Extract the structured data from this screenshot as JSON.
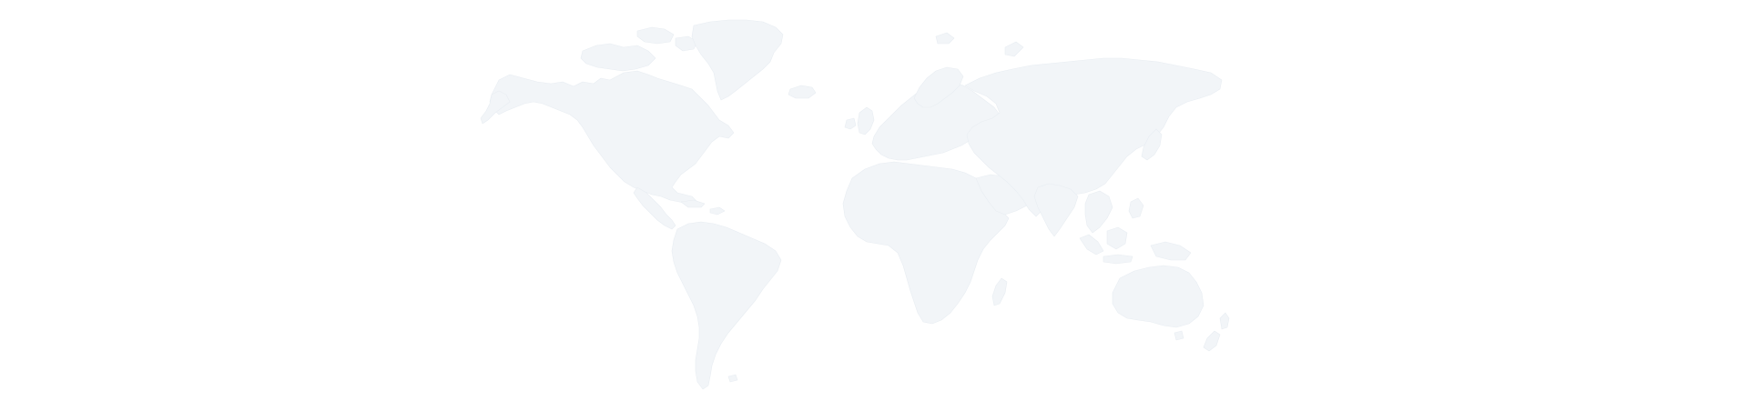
{
  "map": {
    "style": "world-map-silhouette",
    "background_color": "#ffffff",
    "land_color": "#f2f5f8",
    "border_color": "#e8edf2",
    "labels": []
  }
}
